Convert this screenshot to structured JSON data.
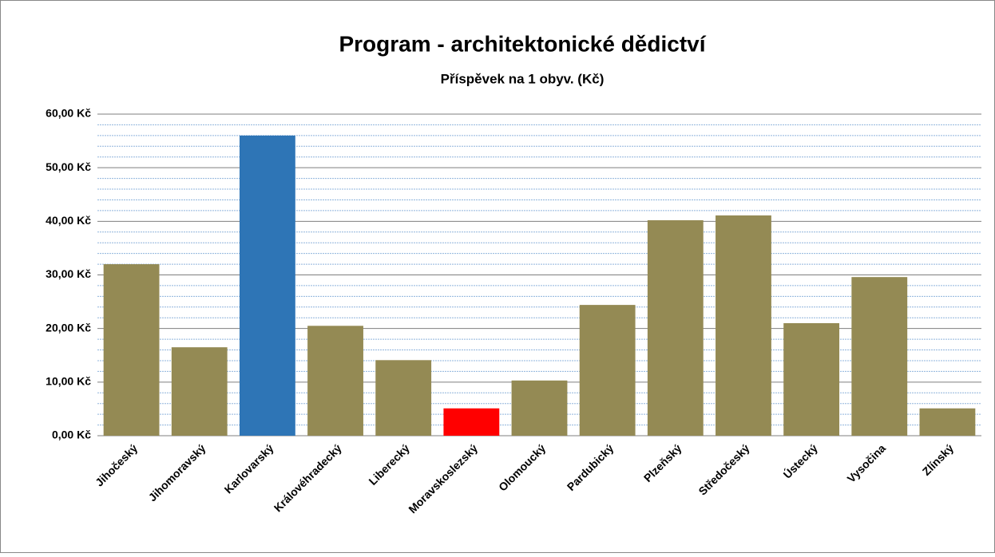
{
  "chart_data": {
    "type": "bar",
    "title": "Program - architektonické dědictví",
    "subtitle": "Příspěvek na 1 obyv. (Kč)",
    "categories": [
      "Jihočeský",
      "Jihomoravský",
      "Karlovarský",
      "Královéhradecký",
      "Liberecký",
      "Moravskoslezský",
      "Olomoucký",
      "Pardubický",
      "Plzeňský",
      "Středočeský",
      "Ústecký",
      "Vysočina",
      "Zlínský"
    ],
    "values": [
      32.0,
      16.5,
      56.0,
      20.5,
      14.1,
      5.1,
      10.3,
      24.4,
      40.2,
      41.1,
      21.0,
      29.6,
      5.1
    ],
    "colors": [
      "#948a54",
      "#948a54",
      "#2e75b6",
      "#948a54",
      "#948a54",
      "#ff0000",
      "#948a54",
      "#948a54",
      "#948a54",
      "#948a54",
      "#948a54",
      "#948a54",
      "#948a54"
    ],
    "ylim": [
      0,
      60
    ],
    "yticks": [
      {
        "value": 0,
        "label": "0,00 Kč"
      },
      {
        "value": 10,
        "label": "10,00 Kč"
      },
      {
        "value": 20,
        "label": "20,00 Kč"
      },
      {
        "value": 30,
        "label": "30,00 Kč"
      },
      {
        "value": 40,
        "label": "40,00 Kč"
      },
      {
        "value": 50,
        "label": "50,00 Kč"
      },
      {
        "value": 60,
        "label": "60,00 Kč"
      }
    ],
    "minor_yticks": [
      2,
      4,
      6,
      8,
      12,
      14,
      16,
      18,
      22,
      24,
      26,
      28,
      32,
      34,
      36,
      38,
      42,
      44,
      46,
      48,
      52,
      54,
      56,
      58
    ],
    "grid": true
  }
}
